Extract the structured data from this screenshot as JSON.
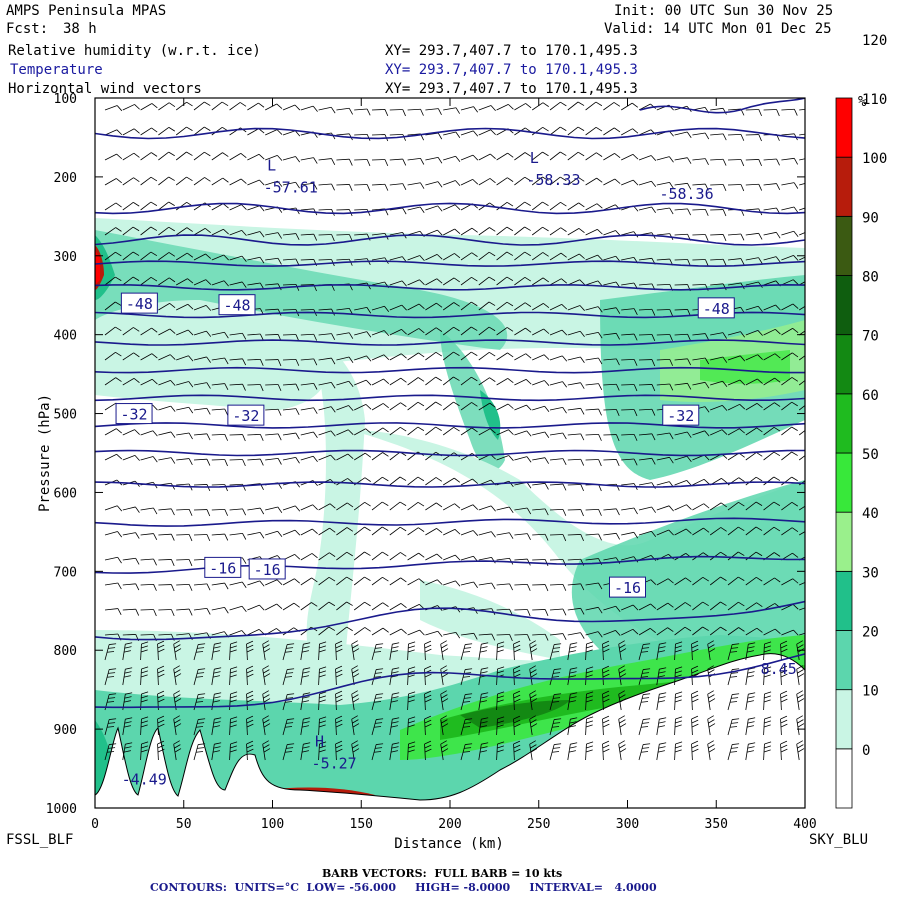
{
  "header": {
    "model": "AMPS Peninsula MPAS",
    "init": "Init: 00 UTC Sun 30 Nov 25",
    "fcst_label": "Fcst:",
    "fcst_value": "38 h",
    "valid": "Valid: 14 UTC Mon 01 Dec 25",
    "field1": "Relative humidity (w.r.t. ice)",
    "field2": "Temperature",
    "field3": "Horizontal wind vectors",
    "xy": "XY= 293.7,407.7 to 170.1,495.3"
  },
  "endpoints": {
    "left": "FSSL_BLF",
    "right": "SKY_BLU"
  },
  "footer": {
    "barb": "BARB VECTORS:  FULL BARB = 10 kts",
    "contours": "CONTOURS:  UNITS=°C  LOW= -56.000     HIGH= -8.0000     INTERVAL=   4.0000"
  },
  "colors": {
    "rh": [
      "#ffffff",
      "#ffffff",
      "#ffffff",
      "#ffffff",
      "#c9f5e4",
      "#5cd6ad",
      "#21c08a",
      "#9af08c",
      "#38e83a",
      "#1fbb1f",
      "#138913",
      "#0f5e0f",
      "#3b5a12",
      "#b71c0c",
      "#ff0000"
    ],
    "contour": "#1a1a8c"
  },
  "chart_data": {
    "type": "cross-section",
    "xlabel": "Distance (km)",
    "ylabel": "Pressure (hPa)",
    "xlim": [
      0,
      400
    ],
    "ylim": [
      1000,
      100
    ],
    "xticks": [
      0,
      50,
      100,
      150,
      200,
      250,
      300,
      350,
      400
    ],
    "yticks": [
      100,
      200,
      300,
      400,
      500,
      600,
      700,
      800,
      900,
      1000
    ],
    "colorbar": {
      "unit": "%",
      "ticks": [
        0,
        10,
        20,
        30,
        40,
        50,
        60,
        70,
        80,
        90,
        100,
        110,
        120
      ]
    },
    "contour_labels": [
      {
        "text": "-48",
        "x": 25,
        "p": 360
      },
      {
        "text": "-48",
        "x": 80,
        "p": 362
      },
      {
        "text": "-48",
        "x": 350,
        "p": 366
      },
      {
        "text": "-32",
        "x": 22,
        "p": 500
      },
      {
        "text": "-32",
        "x": 85,
        "p": 502
      },
      {
        "text": "-32",
        "x": 330,
        "p": 502
      },
      {
        "text": "-16",
        "x": 72,
        "p": 695
      },
      {
        "text": "-16",
        "x": 97,
        "p": 697
      },
      {
        "text": "-16",
        "x": 300,
        "p": 720
      }
    ],
    "extrema": [
      {
        "mark": "L",
        "value": "-57.61",
        "x": 95,
        "p": 220
      },
      {
        "mark": "L",
        "value": "-58.33",
        "x": 243,
        "p": 210
      },
      {
        "mark": "",
        "value": "-58.36",
        "x": 318,
        "p": 228
      },
      {
        "mark": "H",
        "value": "-5.27",
        "x": 122,
        "p": 950
      },
      {
        "mark": "",
        "value": "-4.49",
        "x": 15,
        "p": 970
      },
      {
        "mark": "",
        "value": "8.45",
        "x": 375,
        "p": 830
      }
    ],
    "isotherm_p": [
      145,
      240,
      280,
      310,
      340,
      375,
      410,
      445,
      480,
      515,
      550,
      590,
      640,
      700,
      780,
      870
    ]
  }
}
